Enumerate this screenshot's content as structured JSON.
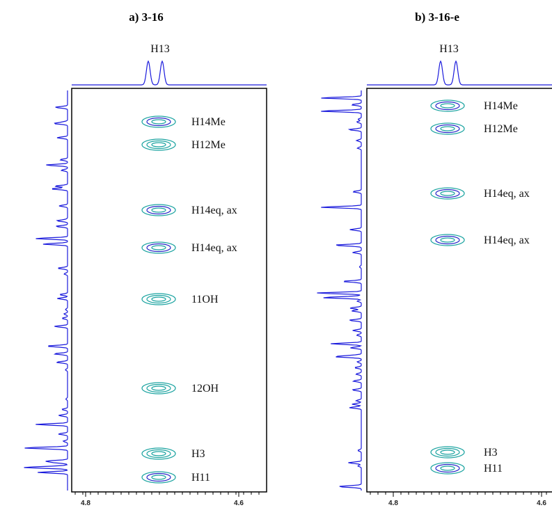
{
  "panels": [
    {
      "title": "a) 3-16",
      "top_label": "H13",
      "peaks": [
        "H14Me",
        "H12Me",
        "H14eq, ax",
        "H14eq, ax",
        "11OH",
        "12OH",
        "H3",
        "H11"
      ],
      "xticks": [
        "4.8",
        "4.6"
      ]
    },
    {
      "title": "b) 3-16-e",
      "top_label": "H13",
      "peaks": [
        "H14Me",
        "H12Me",
        "H14eq, ax",
        "H14eq, ax",
        "H3",
        "H11"
      ],
      "xticks": [
        "4.8",
        "4.6"
      ]
    }
  ]
}
